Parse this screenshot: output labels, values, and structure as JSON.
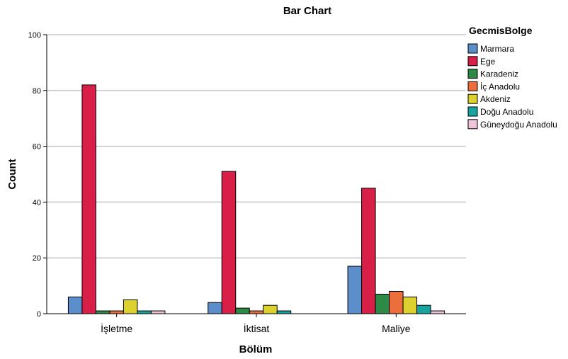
{
  "chart_data": {
    "type": "bar",
    "title": "Bar Chart",
    "xlabel": "Bölüm",
    "ylabel": "Count",
    "ylim": [
      0,
      100
    ],
    "yticks": [
      "0",
      "20",
      "40",
      "60",
      "80",
      "100"
    ],
    "grid": true,
    "legend_title": "GecmisBolge",
    "legend_position": "right",
    "categories": [
      "İşletme",
      "İktisat",
      "Maliye"
    ],
    "series": [
      {
        "name": "Marmara",
        "color": "#5b8ecb",
        "values": [
          6,
          4,
          17
        ]
      },
      {
        "name": "Ege",
        "color": "#d81f48",
        "values": [
          82,
          51,
          45
        ]
      },
      {
        "name": "Karadeniz",
        "color": "#2d8a46",
        "values": [
          1,
          2,
          7
        ]
      },
      {
        "name": "İç Anadolu",
        "color": "#ec6e3c",
        "values": [
          1,
          1,
          8
        ]
      },
      {
        "name": "Akdeniz",
        "color": "#dcd12f",
        "values": [
          5,
          3,
          6
        ]
      },
      {
        "name": "Doğu Anadolu",
        "color": "#17a3a0",
        "values": [
          1,
          1,
          3
        ]
      },
      {
        "name": "Güneydoğu Anadolu",
        "color": "#f1c4dc",
        "values": [
          1,
          0,
          1
        ]
      }
    ]
  }
}
